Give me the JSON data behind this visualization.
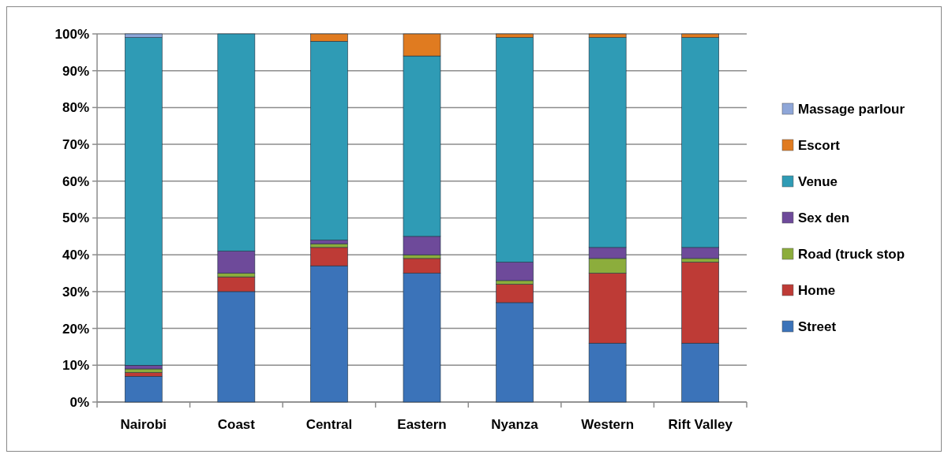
{
  "chart_data": {
    "type": "bar",
    "stacked": true,
    "categories": [
      "Nairobi",
      "Coast",
      "Central",
      "Eastern",
      "Nyanza",
      "Western",
      "Rift Valley"
    ],
    "series": [
      {
        "name": "Street",
        "color": "#3b73b9",
        "values": [
          7,
          30,
          37,
          35,
          27,
          16,
          16
        ]
      },
      {
        "name": "Home",
        "color": "#be3b36",
        "values": [
          1,
          4,
          5,
          4,
          5,
          19,
          22
        ]
      },
      {
        "name": "Road (truck stop",
        "color": "#8cad3c",
        "values": [
          1,
          1,
          1,
          1,
          1,
          4,
          1
        ]
      },
      {
        "name": "Sex den",
        "color": "#6e4a9a",
        "values": [
          1,
          6,
          1,
          5,
          5,
          3,
          3
        ]
      },
      {
        "name": "Venue",
        "color": "#2f9bb5",
        "values": [
          89,
          59,
          54,
          49,
          61,
          57,
          57
        ]
      },
      {
        "name": "Escort",
        "color": "#e07b20",
        "values": [
          0,
          0,
          2,
          6,
          1,
          1,
          1
        ]
      },
      {
        "name": "Massage parlour",
        "color": "#8ea6d8",
        "values": [
          1,
          0,
          0,
          0,
          0,
          0,
          0
        ]
      }
    ],
    "ylim": [
      0,
      100
    ],
    "yticks": [
      {
        "value": 0,
        "label": "0%"
      },
      {
        "value": 10,
        "label": "10%"
      },
      {
        "value": 20,
        "label": "20%"
      },
      {
        "value": 30,
        "label": "30%"
      },
      {
        "value": 40,
        "label": "40%"
      },
      {
        "value": 50,
        "label": "50%"
      },
      {
        "value": 60,
        "label": "60%"
      },
      {
        "value": 70,
        "label": "70%"
      },
      {
        "value": 80,
        "label": "80%"
      },
      {
        "value": 90,
        "label": "90%"
      },
      {
        "value": 100,
        "label": "100%"
      }
    ],
    "grid": "y",
    "legend": "right"
  }
}
